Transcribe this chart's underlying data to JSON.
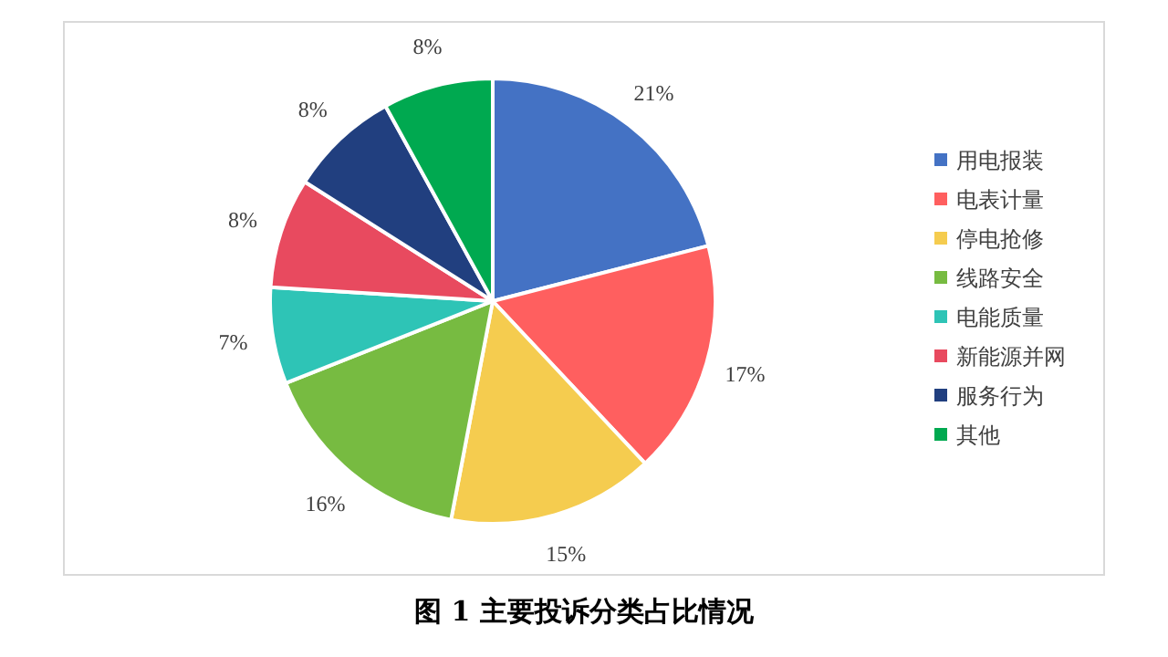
{
  "chart_data": {
    "type": "pie",
    "title": "图 1 主要投诉分类占比情况",
    "categories": [
      "用电报装",
      "电表计量",
      "停电抢修",
      "线路安全",
      "电能质量",
      "新能源并网",
      "服务行为",
      "其他"
    ],
    "values": [
      21,
      17,
      15,
      16,
      7,
      8,
      8,
      8
    ],
    "colors": [
      "#4472c4",
      "#ff5f5f",
      "#f5cc4f",
      "#77bb41",
      "#2ec4b6",
      "#e84a5f",
      "#213f7f",
      "#00a950"
    ],
    "value_labels": [
      "21%",
      "17%",
      "15%",
      "16%",
      "7%",
      "8%",
      "8%",
      "8%"
    ],
    "legend": "right"
  }
}
